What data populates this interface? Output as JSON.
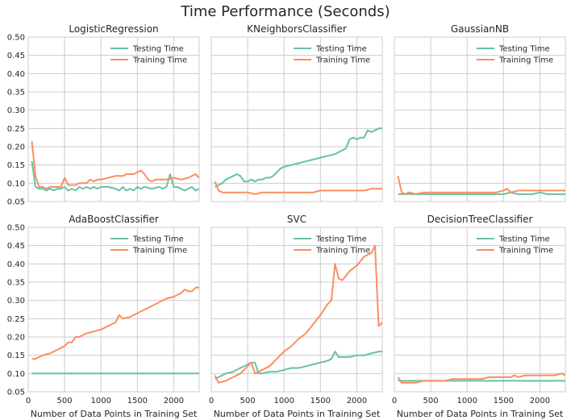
{
  "title": "Time Performance (Seconds)",
  "colors": {
    "testing": "#66c2a5",
    "training": "#fc8d62",
    "panel_bg": "#ffffff",
    "grid": "#cccccc"
  },
  "chart_data": {
    "type": "line",
    "xlim": [
      0,
      2350
    ],
    "ylim": [
      0.05,
      0.5
    ],
    "xticks": [
      0,
      500,
      1000,
      1500,
      2000
    ],
    "yticks": [
      0.05,
      0.1,
      0.15,
      0.2,
      0.25,
      0.3,
      0.35,
      0.4,
      0.45,
      0.5
    ],
    "grid": true,
    "legend_position": "top-right",
    "xlabel": "Number of Data Points in Training Set",
    "panels": [
      {
        "title": "LogisticRegression",
        "series": [
          {
            "name": "Testing Time",
            "color": "#66c2a5",
            "x": [
              50,
              100,
              150,
              200,
              250,
              300,
              350,
              400,
              450,
              500,
              550,
              600,
              650,
              700,
              750,
              800,
              850,
              900,
              950,
              1000,
              1100,
              1200,
              1250,
              1300,
              1350,
              1400,
              1450,
              1500,
              1550,
              1600,
              1700,
              1800,
              1850,
              1900,
              1950,
              2000,
              2050,
              2100,
              2150,
              2200,
              2250,
              2300,
              2350
            ],
            "y": [
              0.16,
              0.09,
              0.085,
              0.085,
              0.08,
              0.085,
              0.08,
              0.085,
              0.085,
              0.09,
              0.08,
              0.085,
              0.08,
              0.09,
              0.085,
              0.09,
              0.085,
              0.09,
              0.085,
              0.09,
              0.09,
              0.085,
              0.08,
              0.09,
              0.08,
              0.085,
              0.08,
              0.09,
              0.085,
              0.09,
              0.085,
              0.09,
              0.085,
              0.09,
              0.125,
              0.09,
              0.09,
              0.085,
              0.08,
              0.085,
              0.09,
              0.08,
              0.085
            ]
          },
          {
            "name": "Training Time",
            "color": "#fc8d62",
            "x": [
              50,
              100,
              150,
              200,
              250,
              300,
              350,
              400,
              450,
              500,
              550,
              600,
              650,
              700,
              750,
              800,
              850,
              900,
              950,
              1000,
              1100,
              1200,
              1300,
              1350,
              1400,
              1450,
              1500,
              1550,
              1600,
              1650,
              1700,
              1750,
              1800,
              1900,
              2000,
              2100,
              2200,
              2300,
              2350
            ],
            "y": [
              0.215,
              0.12,
              0.09,
              0.09,
              0.085,
              0.09,
              0.09,
              0.09,
              0.09,
              0.115,
              0.095,
              0.095,
              0.095,
              0.1,
              0.1,
              0.1,
              0.11,
              0.105,
              0.11,
              0.11,
              0.115,
              0.12,
              0.12,
              0.125,
              0.125,
              0.125,
              0.13,
              0.135,
              0.125,
              0.11,
              0.105,
              0.11,
              0.11,
              0.11,
              0.115,
              0.11,
              0.115,
              0.125,
              0.115
            ]
          }
        ]
      },
      {
        "title": "KNeighborsClassifier",
        "series": [
          {
            "name": "Testing Time",
            "color": "#66c2a5",
            "x": [
              50,
              100,
              150,
              200,
              250,
              300,
              350,
              400,
              450,
              500,
              550,
              600,
              650,
              700,
              750,
              800,
              850,
              900,
              950,
              1000,
              1100,
              1200,
              1300,
              1400,
              1500,
              1600,
              1700,
              1800,
              1850,
              1900,
              1950,
              2000,
              2050,
              2100,
              2150,
              2200,
              2250,
              2300,
              2350
            ],
            "y": [
              0.09,
              0.095,
              0.1,
              0.11,
              0.115,
              0.12,
              0.125,
              0.12,
              0.105,
              0.105,
              0.11,
              0.105,
              0.11,
              0.11,
              0.115,
              0.115,
              0.12,
              0.13,
              0.14,
              0.145,
              0.15,
              0.155,
              0.16,
              0.165,
              0.17,
              0.175,
              0.18,
              0.19,
              0.195,
              0.22,
              0.225,
              0.22,
              0.225,
              0.225,
              0.245,
              0.24,
              0.245,
              0.25,
              0.25
            ]
          },
          {
            "name": "Training Time",
            "color": "#fc8d62",
            "x": [
              50,
              100,
              150,
              200,
              250,
              300,
              400,
              500,
              600,
              700,
              800,
              900,
              1000,
              1100,
              1200,
              1300,
              1400,
              1500,
              1600,
              1700,
              1800,
              1900,
              2000,
              2100,
              2200,
              2300,
              2350
            ],
            "y": [
              0.105,
              0.08,
              0.075,
              0.075,
              0.075,
              0.075,
              0.075,
              0.075,
              0.07,
              0.075,
              0.075,
              0.075,
              0.075,
              0.075,
              0.075,
              0.075,
              0.075,
              0.08,
              0.08,
              0.08,
              0.08,
              0.08,
              0.08,
              0.08,
              0.085,
              0.085,
              0.085
            ]
          }
        ]
      },
      {
        "title": "GaussianNB",
        "series": [
          {
            "name": "Testing Time",
            "color": "#66c2a5",
            "x": [
              50,
              100,
              200,
              300,
              400,
              500,
              600,
              700,
              800,
              900,
              1000,
              1100,
              1200,
              1300,
              1400,
              1500,
              1600,
              1700,
              1800,
              1900,
              2000,
              2100,
              2200,
              2300,
              2350
            ],
            "y": [
              0.07,
              0.07,
              0.07,
              0.07,
              0.07,
              0.07,
              0.07,
              0.07,
              0.07,
              0.07,
              0.07,
              0.07,
              0.07,
              0.07,
              0.07,
              0.07,
              0.075,
              0.07,
              0.07,
              0.07,
              0.075,
              0.07,
              0.07,
              0.07,
              0.07
            ]
          },
          {
            "name": "Training Time",
            "color": "#fc8d62",
            "x": [
              50,
              100,
              150,
              200,
              300,
              400,
              500,
              600,
              700,
              800,
              900,
              1000,
              1100,
              1200,
              1300,
              1400,
              1500,
              1550,
              1600,
              1700,
              1800,
              1900,
              2000,
              2100,
              2200,
              2300,
              2350
            ],
            "y": [
              0.12,
              0.075,
              0.07,
              0.075,
              0.07,
              0.075,
              0.075,
              0.075,
              0.075,
              0.075,
              0.075,
              0.075,
              0.075,
              0.075,
              0.075,
              0.075,
              0.08,
              0.085,
              0.075,
              0.08,
              0.08,
              0.08,
              0.08,
              0.08,
              0.08,
              0.08,
              0.08
            ]
          }
        ]
      },
      {
        "title": "AdaBoostClassifier",
        "series": [
          {
            "name": "Testing Time",
            "color": "#66c2a5",
            "x": [
              50,
              100,
              200,
              300,
              400,
              500,
              600,
              700,
              800,
              900,
              1000,
              1100,
              1200,
              1300,
              1400,
              1500,
              1600,
              1700,
              1800,
              1900,
              2000,
              2100,
              2200,
              2300,
              2350
            ],
            "y": [
              0.1,
              0.1,
              0.1,
              0.1,
              0.1,
              0.1,
              0.1,
              0.1,
              0.1,
              0.1,
              0.1,
              0.1,
              0.1,
              0.1,
              0.1,
              0.1,
              0.1,
              0.1,
              0.1,
              0.1,
              0.1,
              0.1,
              0.1,
              0.1,
              0.1
            ]
          },
          {
            "name": "Training Time",
            "color": "#fc8d62",
            "x": [
              50,
              100,
              150,
              200,
              300,
              400,
              500,
              550,
              600,
              650,
              700,
              800,
              900,
              1000,
              1100,
              1200,
              1250,
              1300,
              1400,
              1500,
              1600,
              1700,
              1800,
              1900,
              2000,
              2100,
              2150,
              2200,
              2250,
              2300,
              2350
            ],
            "y": [
              0.14,
              0.14,
              0.145,
              0.15,
              0.155,
              0.165,
              0.175,
              0.185,
              0.185,
              0.2,
              0.2,
              0.21,
              0.215,
              0.22,
              0.23,
              0.24,
              0.26,
              0.25,
              0.255,
              0.265,
              0.275,
              0.285,
              0.295,
              0.305,
              0.31,
              0.32,
              0.33,
              0.325,
              0.325,
              0.335,
              0.335
            ]
          }
        ]
      },
      {
        "title": "SVC",
        "series": [
          {
            "name": "Testing Time",
            "color": "#66c2a5",
            "x": [
              50,
              100,
              200,
              300,
              400,
              500,
              550,
              600,
              650,
              700,
              800,
              900,
              1000,
              1100,
              1200,
              1300,
              1400,
              1500,
              1600,
              1650,
              1700,
              1750,
              1800,
              1900,
              2000,
              2100,
              2200,
              2300,
              2350
            ],
            "y": [
              0.085,
              0.09,
              0.1,
              0.105,
              0.115,
              0.125,
              0.13,
              0.13,
              0.1,
              0.1,
              0.105,
              0.105,
              0.11,
              0.115,
              0.115,
              0.12,
              0.125,
              0.13,
              0.135,
              0.14,
              0.16,
              0.145,
              0.145,
              0.145,
              0.15,
              0.15,
              0.155,
              0.16,
              0.16
            ]
          },
          {
            "name": "Training Time",
            "color": "#fc8d62",
            "x": [
              50,
              100,
              200,
              300,
              400,
              500,
              550,
              600,
              700,
              800,
              900,
              1000,
              1100,
              1200,
              1300,
              1400,
              1500,
              1600,
              1650,
              1700,
              1750,
              1800,
              1900,
              2000,
              2100,
              2200,
              2250,
              2300,
              2350
            ],
            "y": [
              0.095,
              0.075,
              0.08,
              0.09,
              0.1,
              0.12,
              0.13,
              0.1,
              0.11,
              0.12,
              0.14,
              0.16,
              0.175,
              0.195,
              0.21,
              0.235,
              0.26,
              0.29,
              0.3,
              0.4,
              0.36,
              0.355,
              0.38,
              0.395,
              0.42,
              0.43,
              0.45,
              0.23,
              0.24
            ]
          }
        ]
      },
      {
        "title": "DecisionTreeClassifier",
        "series": [
          {
            "name": "Testing Time",
            "color": "#66c2a5",
            "x": [
              50,
              100,
              200,
              300,
              400,
              500,
              600,
              700,
              800,
              900,
              1000,
              1100,
              1200,
              1300,
              1400,
              1500,
              1600,
              1700,
              1800,
              1900,
              2000,
              2100,
              2200,
              2300,
              2350
            ],
            "y": [
              0.08,
              0.08,
              0.08,
              0.08,
              0.08,
              0.08,
              0.08,
              0.08,
              0.08,
              0.08,
              0.08,
              0.08,
              0.08,
              0.08,
              0.08,
              0.08,
              0.08,
              0.08,
              0.08,
              0.08,
              0.08,
              0.08,
              0.08,
              0.08,
              0.08
            ]
          },
          {
            "name": "Training Time",
            "color": "#fc8d62",
            "x": [
              50,
              100,
              200,
              300,
              400,
              500,
              600,
              700,
              800,
              900,
              1000,
              1100,
              1200,
              1300,
              1400,
              1500,
              1600,
              1650,
              1700,
              1800,
              1900,
              2000,
              2100,
              2200,
              2300,
              2350
            ],
            "y": [
              0.09,
              0.075,
              0.075,
              0.075,
              0.08,
              0.08,
              0.08,
              0.08,
              0.085,
              0.085,
              0.085,
              0.085,
              0.085,
              0.09,
              0.09,
              0.09,
              0.09,
              0.095,
              0.09,
              0.095,
              0.095,
              0.095,
              0.095,
              0.095,
              0.1,
              0.095
            ]
          }
        ]
      }
    ]
  }
}
